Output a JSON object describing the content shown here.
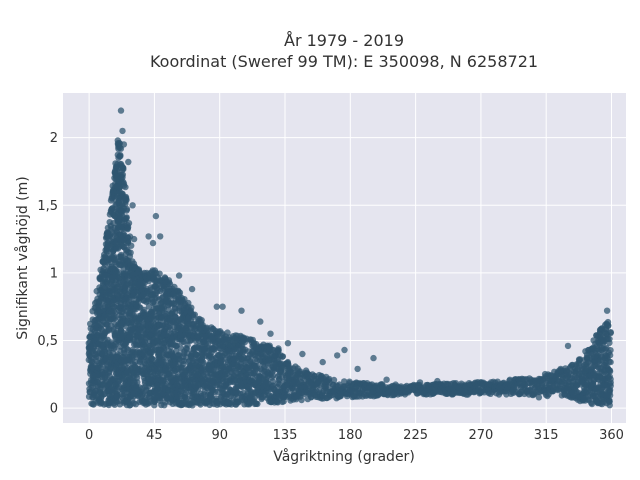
{
  "chart_data": {
    "type": "scatter",
    "title_line1": "År 1979 - 2019",
    "title_line2": "Koordinat (Sweref 99 TM): E 350098, N 6258721",
    "xlabel": "Vågriktning (grader)",
    "ylabel": "Signifikant våghöjd (m)",
    "xlim": [
      -18,
      370
    ],
    "ylim": [
      -0.11,
      2.33
    ],
    "xticks": [
      0,
      45,
      90,
      135,
      180,
      225,
      270,
      315,
      360
    ],
    "xtick_labels": [
      "0",
      "45",
      "90",
      "135",
      "180",
      "225",
      "270",
      "315",
      "360"
    ],
    "yticks": [
      0,
      0.5,
      1,
      1.5,
      2
    ],
    "ytick_labels": [
      "0",
      "0,5",
      "1",
      "1,5",
      "2"
    ],
    "grid": true,
    "legend": "none",
    "marker_color": "#2f5570",
    "background_color": "#e5e5ef",
    "upper_envelope": {
      "x": [
        0,
        5,
        10,
        15,
        18,
        20,
        22,
        25,
        28,
        30,
        35,
        40,
        45,
        50,
        55,
        60,
        65,
        70,
        80,
        90,
        100,
        110,
        120,
        130,
        140,
        150,
        160,
        170,
        180,
        200,
        220,
        240,
        260,
        280,
        300,
        310,
        320,
        330,
        340,
        345,
        350,
        355,
        358,
        360
      ],
      "y": [
        0.6,
        0.85,
        1.15,
        1.55,
        1.85,
        1.98,
        1.95,
        1.65,
        1.3,
        1.1,
        1.02,
        1.0,
        1.05,
        0.98,
        0.95,
        0.9,
        0.82,
        0.75,
        0.62,
        0.58,
        0.55,
        0.52,
        0.48,
        0.45,
        0.32,
        0.28,
        0.24,
        0.22,
        0.2,
        0.18,
        0.17,
        0.18,
        0.19,
        0.2,
        0.22,
        0.24,
        0.27,
        0.3,
        0.38,
        0.45,
        0.55,
        0.62,
        0.65,
        0.6
      ]
    },
    "lower_envelope": {
      "x": [
        0,
        30,
        90,
        120,
        150,
        180,
        220,
        260,
        300,
        330,
        345,
        360
      ],
      "y": [
        0.02,
        0.02,
        0.02,
        0.03,
        0.06,
        0.08,
        0.1,
        0.1,
        0.1,
        0.08,
        0.03,
        0.02
      ]
    },
    "outliers": [
      {
        "x": 22,
        "y": 2.2
      },
      {
        "x": 23,
        "y": 2.05
      },
      {
        "x": 24,
        "y": 1.95
      },
      {
        "x": 27,
        "y": 1.82
      },
      {
        "x": 30,
        "y": 1.5
      },
      {
        "x": 31,
        "y": 1.25
      },
      {
        "x": 41,
        "y": 1.27
      },
      {
        "x": 46,
        "y": 1.42
      },
      {
        "x": 49,
        "y": 1.27
      },
      {
        "x": 44,
        "y": 1.22
      },
      {
        "x": 62,
        "y": 0.98
      },
      {
        "x": 71,
        "y": 0.88
      },
      {
        "x": 88,
        "y": 0.75
      },
      {
        "x": 92,
        "y": 0.75
      },
      {
        "x": 105,
        "y": 0.72
      },
      {
        "x": 118,
        "y": 0.64
      },
      {
        "x": 125,
        "y": 0.55
      },
      {
        "x": 137,
        "y": 0.48
      },
      {
        "x": 147,
        "y": 0.4
      },
      {
        "x": 161,
        "y": 0.34
      },
      {
        "x": 171,
        "y": 0.39
      },
      {
        "x": 176,
        "y": 0.43
      },
      {
        "x": 185,
        "y": 0.29
      },
      {
        "x": 196,
        "y": 0.37
      },
      {
        "x": 205,
        "y": 0.21
      },
      {
        "x": 228,
        "y": 0.19
      },
      {
        "x": 240,
        "y": 0.2
      },
      {
        "x": 330,
        "y": 0.46
      },
      {
        "x": 357,
        "y": 0.72
      },
      {
        "x": 342,
        "y": 0.42
      },
      {
        "x": 325,
        "y": 0.29
      },
      {
        "x": 310,
        "y": 0.08
      }
    ]
  }
}
